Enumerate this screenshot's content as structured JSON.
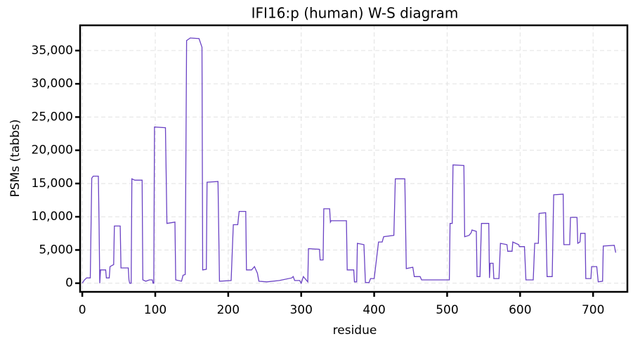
{
  "chart_data": {
    "type": "line",
    "title": "IFI16:p (human) W-S diagram",
    "xlabel": "residue",
    "ylabel": "PSMs (tabbs)",
    "color": "#6a42c4",
    "grid": true,
    "xlim": [
      -3,
      747
    ],
    "ylim": [
      -1300,
      38800
    ],
    "xticks": [
      0,
      100,
      200,
      300,
      400,
      500,
      600,
      700
    ],
    "yticks": [
      0,
      {
        "value": 5000,
        "label": "5,000"
      },
      {
        "value": 10000,
        "label": "10,000"
      },
      {
        "value": 15000,
        "label": "15,000"
      },
      {
        "value": 20000,
        "label": "20,000"
      },
      {
        "value": 25000,
        "label": "25,000"
      },
      {
        "value": 30000,
        "label": "30,000"
      },
      {
        "value": 35000,
        "label": "35,000"
      }
    ],
    "x": [
      0,
      3,
      6,
      11,
      13,
      15,
      22,
      23,
      24,
      25,
      32,
      33,
      37,
      38,
      43,
      44,
      52,
      53,
      63,
      64,
      65,
      67,
      68,
      72,
      82,
      83,
      87,
      92,
      96,
      97,
      98,
      99,
      114,
      116,
      127,
      128,
      136,
      138,
      141,
      143,
      148,
      160,
      164,
      165,
      170,
      171,
      186,
      188,
      204,
      207,
      213,
      215,
      224,
      225,
      232,
      236,
      240,
      242,
      253,
      270,
      287,
      289,
      291,
      298,
      300,
      303,
      309,
      310,
      325,
      326,
      330,
      331,
      339,
      340,
      341,
      362,
      363,
      372,
      373,
      376,
      377,
      386,
      388,
      393,
      395,
      400,
      406,
      411,
      413,
      427,
      429,
      442,
      444,
      453,
      455,
      463,
      465,
      503,
      504,
      507,
      508,
      523,
      524,
      530,
      533,
      534,
      540,
      541,
      545,
      547,
      557,
      558,
      559,
      563,
      564,
      571,
      573,
      582,
      583,
      589,
      590,
      598,
      599,
      606,
      608,
      618,
      620,
      625,
      626,
      635,
      637,
      644,
      646,
      659,
      660,
      668,
      669,
      678,
      679,
      682,
      683,
      689,
      690,
      697,
      698,
      705,
      707,
      713,
      714,
      729,
      731
    ],
    "values": [
      0,
      500,
      800,
      800,
      15800,
      16100,
      16100,
      9000,
      0,
      2000,
      2000,
      800,
      800,
      2500,
      2800,
      8600,
      8600,
      2300,
      2300,
      500,
      0,
      0,
      15700,
      15500,
      15500,
      500,
      300,
      500,
      500,
      0,
      0,
      23500,
      23400,
      9000,
      9200,
      500,
      300,
      1200,
      1300,
      36500,
      36900,
      36800,
      35500,
      2000,
      2100,
      15200,
      15300,
      300,
      400,
      8800,
      8800,
      10800,
      10800,
      2000,
      2000,
      2500,
      1500,
      300,
      200,
      400,
      800,
      1000,
      400,
      400,
      0,
      1000,
      200,
      5200,
      5100,
      3500,
      3500,
      11200,
      11200,
      9200,
      9400,
      9400,
      2000,
      2000,
      200,
      200,
      6000,
      5800,
      100,
      100,
      700,
      700,
      6200,
      6200,
      7000,
      7200,
      15700,
      15700,
      2200,
      2400,
      1000,
      1000,
      500,
      500,
      9000,
      9000,
      17800,
      17700,
      7000,
      7200,
      7600,
      8000,
      7800,
      1000,
      1000,
      9000,
      9000,
      800,
      3000,
      3000,
      700,
      700,
      6000,
      5800,
      4800,
      4800,
      6200,
      5800,
      5500,
      5500,
      500,
      500,
      6000,
      6000,
      10500,
      10600,
      1000,
      1000,
      13300,
      13400,
      5800,
      5800,
      9900,
      9900,
      6000,
      6200,
      7500,
      7500,
      700,
      700,
      2500,
      2500,
      200,
      300,
      5600,
      5700,
      4600
    ]
  }
}
